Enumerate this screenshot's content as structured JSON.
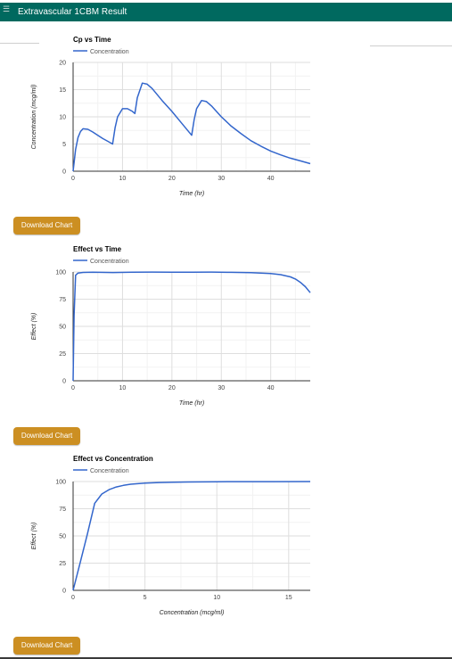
{
  "window": {
    "title": "Extravascular 1CBM Result"
  },
  "buttons": {
    "download": "Download Chart"
  },
  "colors": {
    "header": "#00695f",
    "button": "#cc8f22",
    "series": "#3366cc"
  },
  "chart_data": [
    {
      "type": "line",
      "title": "Cp vs Time",
      "xlabel": "Time (hr)",
      "ylabel": "Concentration (mcg/ml)",
      "xlim": [
        0,
        48
      ],
      "ylim": [
        0,
        20
      ],
      "xticks": [
        0,
        10,
        20,
        30,
        40
      ],
      "yticks": [
        0,
        5,
        10,
        15,
        20
      ],
      "legend": "top-left",
      "grid": true,
      "series": [
        {
          "name": "Concentration",
          "x": [
            0,
            0.5,
            1,
            1.5,
            2,
            3,
            4,
            5,
            6,
            7,
            8,
            8.5,
            9,
            10,
            11,
            12,
            12.5,
            13,
            14,
            15,
            16,
            18,
            20,
            22,
            24,
            24.5,
            25,
            26,
            27,
            28,
            30,
            32,
            34,
            36,
            38,
            40,
            42,
            44,
            46,
            48
          ],
          "y": [
            0,
            4,
            6.2,
            7.3,
            7.8,
            7.7,
            7.2,
            6.6,
            6.0,
            5.5,
            5.0,
            8.0,
            10.0,
            11.5,
            11.5,
            11.0,
            10.6,
            13.5,
            16.2,
            16.0,
            15.2,
            13.0,
            11.0,
            8.8,
            6.6,
            9.5,
            11.5,
            13.0,
            12.8,
            12.0,
            10.0,
            8.3,
            6.9,
            5.6,
            4.6,
            3.7,
            3.0,
            2.4,
            1.9,
            1.4
          ]
        }
      ]
    },
    {
      "type": "line",
      "title": "Effect vs Time",
      "xlabel": "Time (hr)",
      "ylabel": "Effect (%)",
      "xlim": [
        0,
        48
      ],
      "ylim": [
        0,
        100
      ],
      "xticks": [
        0,
        10,
        20,
        30,
        40
      ],
      "yticks": [
        0,
        25,
        50,
        75,
        100
      ],
      "legend": "top-left",
      "grid": true,
      "series": [
        {
          "name": "Concentration",
          "x": [
            0,
            0.2,
            0.5,
            1,
            2,
            4,
            8,
            12,
            16,
            20,
            24,
            28,
            32,
            36,
            40,
            42,
            44,
            45,
            46,
            47,
            48
          ],
          "y": [
            0,
            60,
            97,
            99,
            99.6,
            99.8,
            99.5,
            99.8,
            99.9,
            99.8,
            99.8,
            99.9,
            99.7,
            99.4,
            98.5,
            97.5,
            95.5,
            93.5,
            90.5,
            86.5,
            81
          ]
        }
      ]
    },
    {
      "type": "line",
      "title": "Effect vs Concentration",
      "xlabel": "Concentration (mcg/ml)",
      "ylabel": "Effect (%)",
      "xlim": [
        0,
        16.5
      ],
      "ylim": [
        0,
        100
      ],
      "xticks": [
        0,
        5,
        10,
        15
      ],
      "yticks": [
        0,
        25,
        50,
        75,
        100
      ],
      "legend": "top-left",
      "grid": true,
      "series": [
        {
          "name": "Concentration",
          "x": [
            0,
            0.5,
            1,
            1.5,
            2,
            2.5,
            3,
            3.5,
            4,
            5,
            6,
            7,
            8,
            10,
            12,
            14,
            16.5
          ],
          "y": [
            0,
            26,
            52,
            80,
            88.5,
            92.5,
            95,
            96.5,
            97.5,
            98.6,
            99.1,
            99.4,
            99.6,
            99.8,
            99.9,
            99.9,
            100
          ]
        }
      ]
    }
  ]
}
